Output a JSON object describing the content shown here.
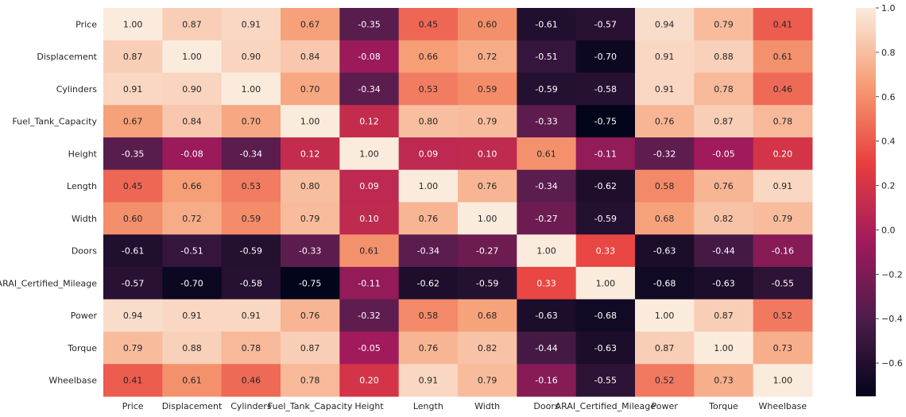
{
  "chart_data": {
    "type": "heatmap",
    "title": "",
    "xlabel": "",
    "ylabel": "",
    "rows": [
      "Price",
      "Displacement",
      "Cylinders",
      "Fuel_Tank_Capacity",
      "Height",
      "Length",
      "Width",
      "Doors",
      "ARAI_Certified_Mileage",
      "Power",
      "Torque",
      "Wheelbase"
    ],
    "columns": [
      "Price",
      "Displacement",
      "Cylinders",
      "Fuel_Tank_Capacity",
      "Height",
      "Length",
      "Width",
      "Doors",
      "ARAI_Certified_Mileage",
      "Power",
      "Torque",
      "Wheelbase"
    ],
    "values": [
      [
        1.0,
        0.87,
        0.91,
        0.67,
        -0.35,
        0.45,
        0.6,
        -0.61,
        -0.57,
        0.94,
        0.79,
        0.41
      ],
      [
        0.87,
        1.0,
        0.9,
        0.84,
        -0.08,
        0.66,
        0.72,
        -0.51,
        -0.7,
        0.91,
        0.88,
        0.61
      ],
      [
        0.91,
        0.9,
        1.0,
        0.7,
        -0.34,
        0.53,
        0.59,
        -0.59,
        -0.58,
        0.91,
        0.78,
        0.46
      ],
      [
        0.67,
        0.84,
        0.7,
        1.0,
        0.12,
        0.8,
        0.79,
        -0.33,
        -0.75,
        0.76,
        0.87,
        0.78
      ],
      [
        -0.35,
        -0.08,
        -0.34,
        0.12,
        1.0,
        0.09,
        0.1,
        0.61,
        -0.11,
        -0.32,
        -0.05,
        0.2
      ],
      [
        0.45,
        0.66,
        0.53,
        0.8,
        0.09,
        1.0,
        0.76,
        -0.34,
        -0.62,
        0.58,
        0.76,
        0.91
      ],
      [
        0.6,
        0.72,
        0.59,
        0.79,
        0.1,
        0.76,
        1.0,
        -0.27,
        -0.59,
        0.68,
        0.82,
        0.79
      ],
      [
        -0.61,
        -0.51,
        -0.59,
        -0.33,
        0.61,
        -0.34,
        -0.27,
        1.0,
        0.33,
        -0.63,
        -0.44,
        -0.16
      ],
      [
        -0.57,
        -0.7,
        -0.58,
        -0.75,
        -0.11,
        -0.62,
        -0.59,
        0.33,
        1.0,
        -0.68,
        -0.63,
        -0.55
      ],
      [
        0.94,
        0.91,
        0.91,
        0.76,
        -0.32,
        0.58,
        0.68,
        -0.63,
        -0.68,
        1.0,
        0.87,
        0.52
      ],
      [
        0.79,
        0.88,
        0.78,
        0.87,
        -0.05,
        0.76,
        0.82,
        -0.44,
        -0.63,
        0.87,
        1.0,
        0.73
      ],
      [
        0.41,
        0.61,
        0.46,
        0.78,
        0.2,
        0.91,
        0.79,
        -0.16,
        -0.55,
        0.52,
        0.73,
        1.0
      ]
    ],
    "value_format": "0.00",
    "annotations_shown": true,
    "colorbar": {
      "colormap": "rocket",
      "range": [
        -0.75,
        1.0
      ],
      "ticks": [
        1.0,
        0.8,
        0.6,
        0.4,
        0.2,
        0.0,
        -0.2,
        -0.4,
        -0.6
      ],
      "tick_labels": [
        "1.0",
        "0.8",
        "0.6",
        "0.4",
        "0.2",
        "0.0",
        "−0.2",
        "−0.4",
        "−0.6"
      ],
      "placement": "right"
    },
    "colormap_stops": [
      "#03051a",
      "#4c1d4b",
      "#a11a5b",
      "#e83f3f",
      "#f69c73",
      "#faebdd"
    ],
    "grid": false
  }
}
